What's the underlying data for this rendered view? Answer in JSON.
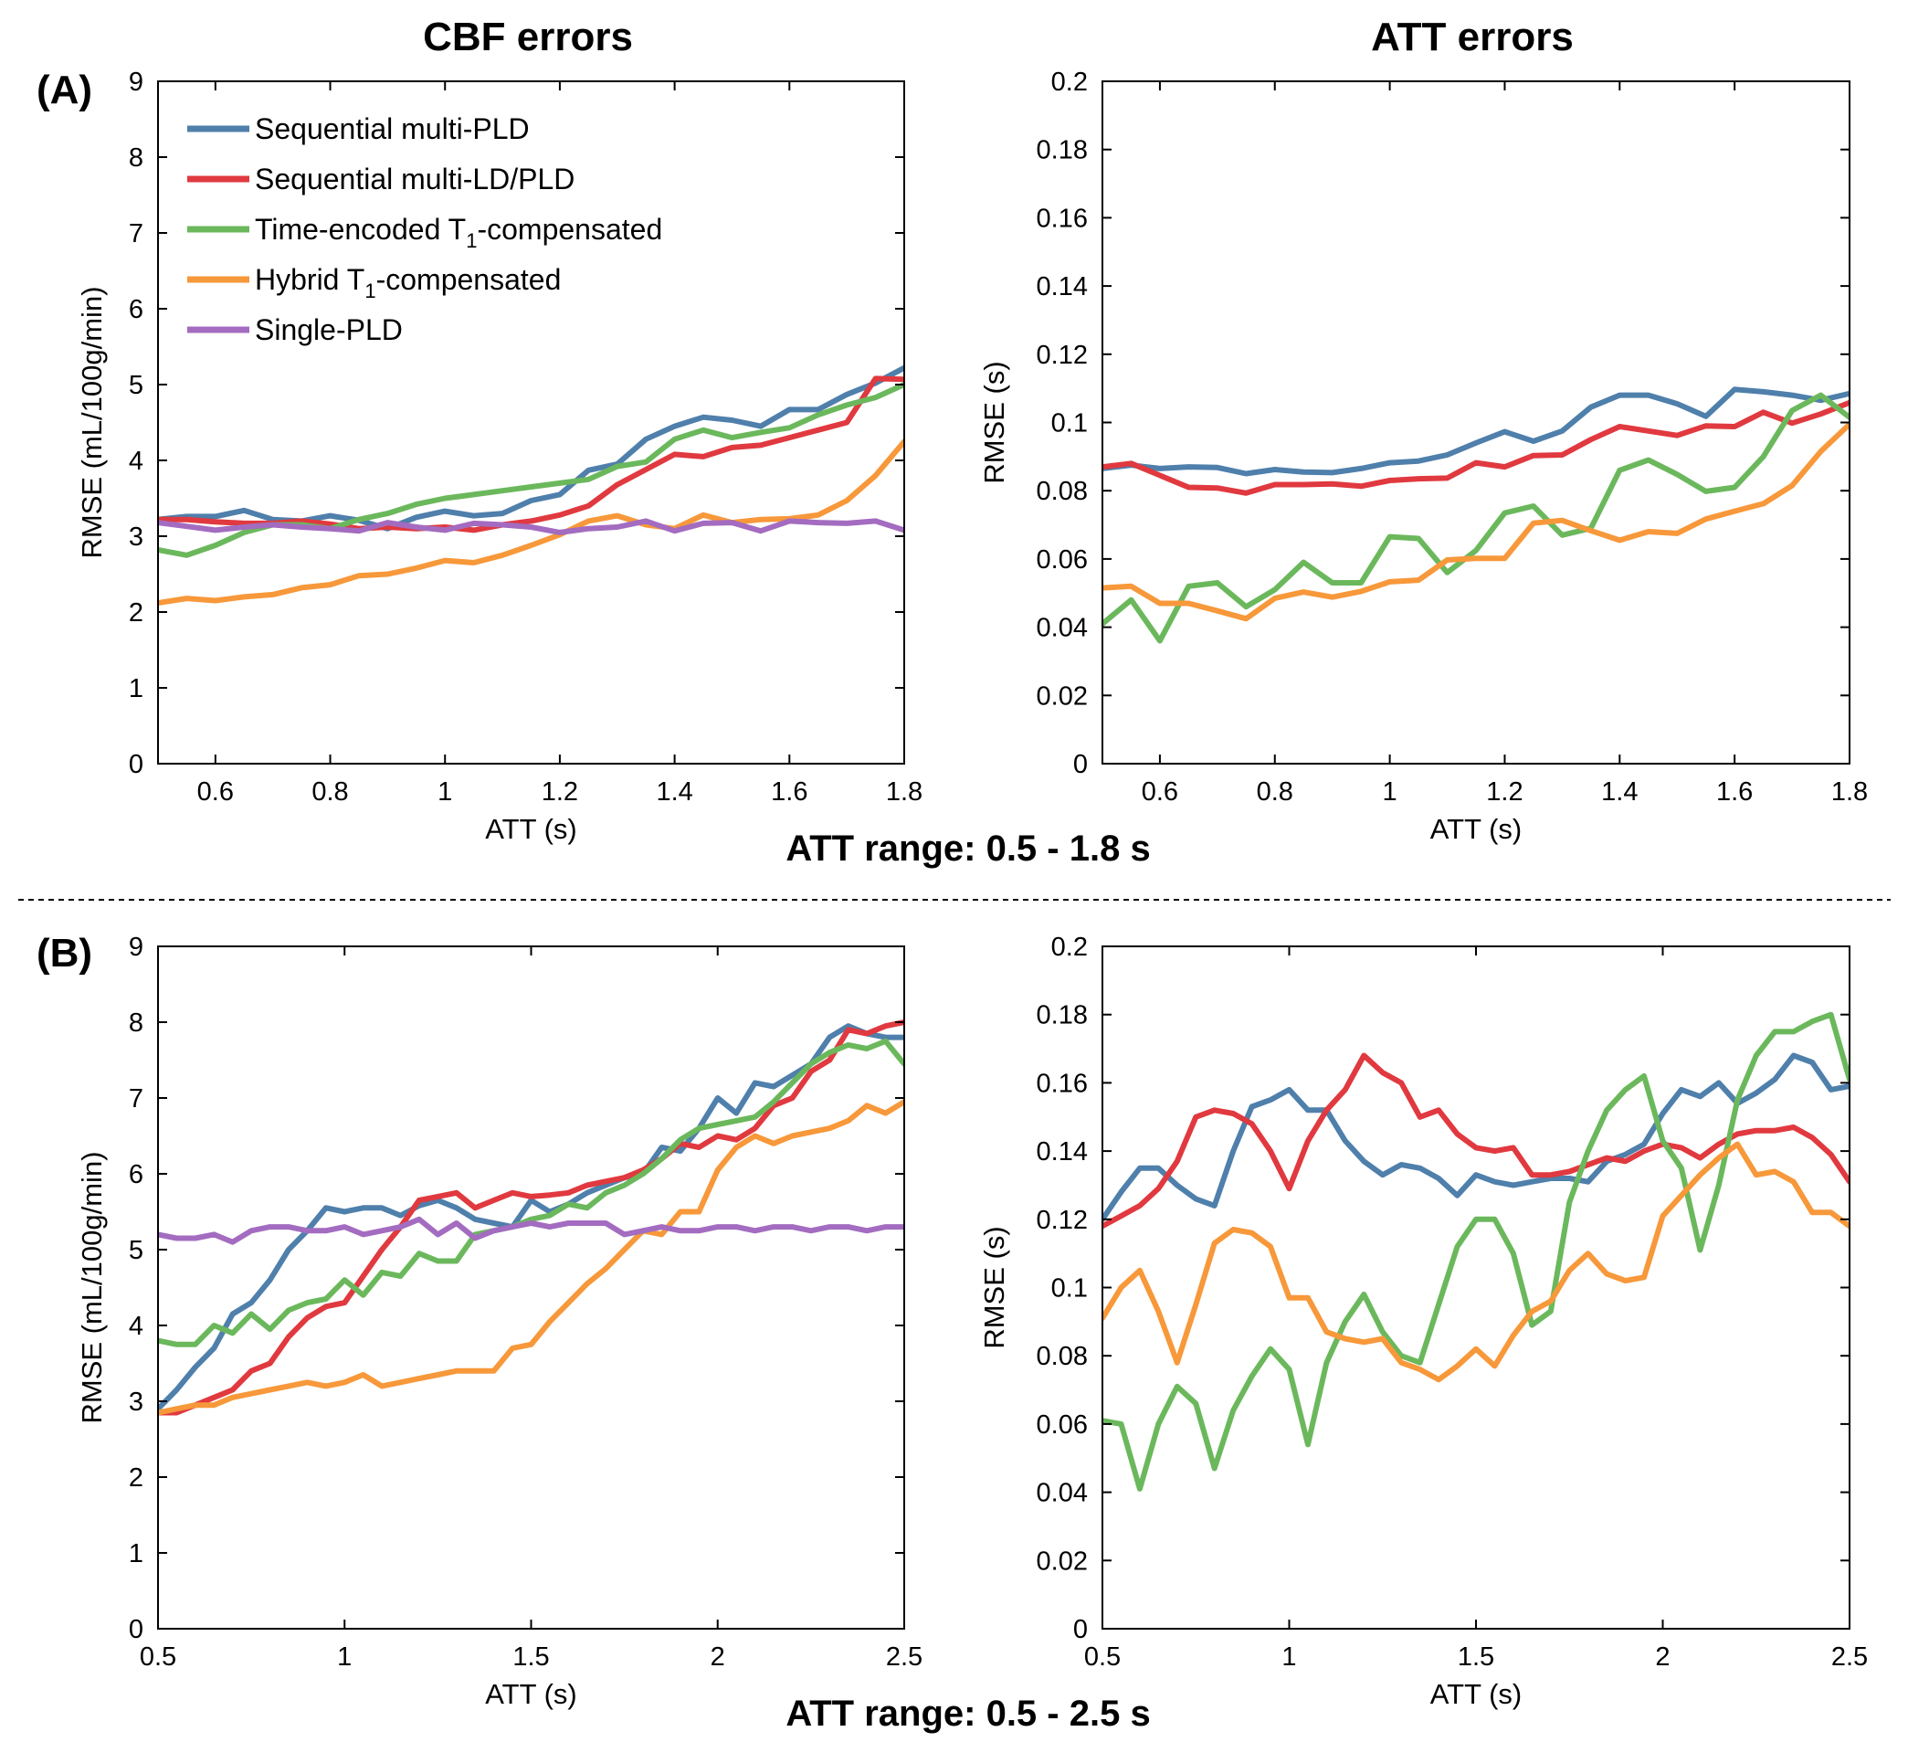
{
  "colors": {
    "blue": "#4f7fab",
    "red": "#e0393f",
    "green": "#6bb85c",
    "orange": "#f7983a",
    "purple": "#a36cc0"
  },
  "header": {
    "cbf_title": "CBF errors",
    "att_title": "ATT errors",
    "panel_a": "(A)",
    "panel_b": "(B)",
    "range_a": "ATT range: 0.5 - 1.8 s",
    "range_b": "ATT range: 0.5 - 2.5 s"
  },
  "legend": {
    "entries": [
      {
        "name": "Sequential multi-PLD",
        "color": "blue"
      },
      {
        "name": "Sequential multi-LD/PLD",
        "color": "red"
      },
      {
        "name": "Time-encoded T1-compensated",
        "color": "green",
        "pre": "Time-encoded T",
        "sub": "1",
        "post": "-compensated"
      },
      {
        "name": "Hybrid T1-compensated",
        "color": "orange",
        "pre": "Hybrid T",
        "sub": "1",
        "post": "-compensated"
      },
      {
        "name": "Single-PLD",
        "color": "purple"
      }
    ]
  },
  "chart_data": [
    {
      "id": "A-CBF",
      "type": "line",
      "title": "CBF errors",
      "xlabel": "ATT (s)",
      "ylabel": "RMSE (mL/100g/min)",
      "xlim": [
        0.5,
        1.8
      ],
      "ylim": [
        0,
        9
      ],
      "xticks": [
        0.6,
        0.8,
        1,
        1.2,
        1.4,
        1.6,
        1.8
      ],
      "yticks": [
        0,
        1,
        2,
        3,
        4,
        5,
        6,
        7,
        8,
        9
      ],
      "x": [
        0.5,
        0.55,
        0.6,
        0.65,
        0.7,
        0.75,
        0.8,
        0.85,
        0.9,
        0.95,
        1.0,
        1.05,
        1.1,
        1.15,
        1.2,
        1.25,
        1.3,
        1.35,
        1.4,
        1.45,
        1.5,
        1.55,
        1.6,
        1.65,
        1.7,
        1.75,
        1.8
      ],
      "series": [
        {
          "name": "Sequential multi-PLD",
          "color": "blue",
          "values": [
            3.22,
            3.26,
            3.26,
            3.34,
            3.22,
            3.2,
            3.27,
            3.21,
            3.1,
            3.25,
            3.33,
            3.27,
            3.3,
            3.47,
            3.55,
            3.87,
            3.95,
            4.28,
            4.45,
            4.57,
            4.53,
            4.45,
            4.67,
            4.67,
            4.87,
            5.02,
            5.22
          ]
        },
        {
          "name": "Sequential multi-LD/PLD",
          "color": "red",
          "values": [
            3.22,
            3.22,
            3.19,
            3.17,
            3.17,
            3.2,
            3.16,
            3.1,
            3.12,
            3.1,
            3.12,
            3.08,
            3.15,
            3.2,
            3.28,
            3.4,
            3.68,
            3.88,
            4.08,
            4.05,
            4.17,
            4.2,
            4.3,
            4.4,
            4.5,
            5.08,
            5.07
          ]
        },
        {
          "name": "Time-encoded T1-compensated",
          "color": "green",
          "values": [
            2.82,
            2.75,
            2.88,
            3.05,
            3.15,
            3.15,
            3.1,
            3.22,
            3.3,
            3.42,
            3.5,
            3.55,
            3.6,
            3.65,
            3.7,
            3.75,
            3.92,
            3.98,
            4.28,
            4.4,
            4.3,
            4.37,
            4.43,
            4.6,
            4.73,
            4.83,
            5.0
          ]
        },
        {
          "name": "Hybrid T1-compensated",
          "color": "orange",
          "values": [
            2.12,
            2.18,
            2.15,
            2.2,
            2.23,
            2.32,
            2.36,
            2.48,
            2.5,
            2.58,
            2.68,
            2.65,
            2.75,
            2.88,
            3.02,
            3.2,
            3.27,
            3.15,
            3.1,
            3.28,
            3.18,
            3.22,
            3.23,
            3.28,
            3.47,
            3.8,
            4.25
          ]
        },
        {
          "name": "Single-PLD",
          "color": "purple",
          "values": [
            3.18,
            3.13,
            3.08,
            3.12,
            3.15,
            3.12,
            3.1,
            3.07,
            3.18,
            3.12,
            3.08,
            3.17,
            3.15,
            3.12,
            3.05,
            3.1,
            3.12,
            3.2,
            3.07,
            3.17,
            3.18,
            3.07,
            3.2,
            3.18,
            3.17,
            3.2,
            3.08
          ]
        }
      ]
    },
    {
      "id": "A-ATT",
      "type": "line",
      "title": "ATT errors",
      "xlabel": "ATT (s)",
      "ylabel": "RMSE (s)",
      "xlim": [
        0.5,
        1.8
      ],
      "ylim": [
        0,
        0.2
      ],
      "xticks": [
        0.6,
        0.8,
        1,
        1.2,
        1.4,
        1.6,
        1.8
      ],
      "yticks": [
        0,
        0.02,
        0.04,
        0.06,
        0.08,
        0.1,
        0.12,
        0.14,
        0.16,
        0.18,
        0.2
      ],
      "x": [
        0.5,
        0.55,
        0.6,
        0.65,
        0.7,
        0.75,
        0.8,
        0.85,
        0.9,
        0.95,
        1.0,
        1.05,
        1.1,
        1.15,
        1.2,
        1.25,
        1.3,
        1.35,
        1.4,
        1.45,
        1.5,
        1.55,
        1.6,
        1.65,
        1.7,
        1.75,
        1.8
      ],
      "series": [
        {
          "name": "Sequential multi-PLD",
          "color": "blue",
          "values": [
            0.0865,
            0.0875,
            0.0865,
            0.087,
            0.0868,
            0.085,
            0.0862,
            0.0855,
            0.0853,
            0.0865,
            0.0882,
            0.0887,
            0.0905,
            0.094,
            0.0973,
            0.0945,
            0.0975,
            0.1045,
            0.108,
            0.108,
            0.1055,
            0.1018,
            0.1097,
            0.109,
            0.108,
            0.1065,
            0.1085
          ]
        },
        {
          "name": "Sequential multi-LD/PLD",
          "color": "red",
          "values": [
            0.087,
            0.088,
            0.0845,
            0.081,
            0.0808,
            0.0793,
            0.0818,
            0.0818,
            0.082,
            0.0813,
            0.083,
            0.0835,
            0.0837,
            0.0882,
            0.087,
            0.0903,
            0.0905,
            0.095,
            0.0988,
            0.0975,
            0.0962,
            0.099,
            0.0988,
            0.103,
            0.0998,
            0.1025,
            0.1058
          ]
        },
        {
          "name": "Time-encoded T1-compensated",
          "color": "green",
          "values": [
            0.041,
            0.048,
            0.036,
            0.052,
            0.053,
            0.046,
            0.051,
            0.059,
            0.053,
            0.053,
            0.0665,
            0.066,
            0.056,
            0.0625,
            0.0735,
            0.0755,
            0.067,
            0.069,
            0.086,
            0.089,
            0.0848,
            0.0798,
            0.081,
            0.09,
            0.1035,
            0.108,
            0.1015
          ]
        },
        {
          "name": "Hybrid T1-compensated",
          "color": "orange",
          "values": [
            0.0515,
            0.052,
            0.047,
            0.047,
            0.0448,
            0.0425,
            0.0485,
            0.0503,
            0.0488,
            0.0505,
            0.0533,
            0.0538,
            0.0597,
            0.0602,
            0.0602,
            0.0705,
            0.0713,
            0.0683,
            0.0655,
            0.068,
            0.0675,
            0.0717,
            0.074,
            0.0762,
            0.0815,
            0.0915,
            0.0995
          ]
        }
      ]
    },
    {
      "id": "B-CBF",
      "type": "line",
      "title": "",
      "xlabel": "ATT (s)",
      "ylabel": "RMSE (mL/100g/min)",
      "xlim": [
        0.5,
        2.5
      ],
      "ylim": [
        0,
        9
      ],
      "xticks": [
        0.5,
        1,
        1.5,
        2,
        2.5
      ],
      "yticks": [
        0,
        1,
        2,
        3,
        4,
        5,
        6,
        7,
        8,
        9
      ],
      "x": [
        0.5,
        0.55,
        0.6,
        0.65,
        0.7,
        0.75,
        0.8,
        0.85,
        0.9,
        0.95,
        1.0,
        1.05,
        1.1,
        1.15,
        1.2,
        1.25,
        1.3,
        1.35,
        1.4,
        1.45,
        1.5,
        1.55,
        1.6,
        1.65,
        1.7,
        1.75,
        1.8,
        1.85,
        1.9,
        1.95,
        2.0,
        2.05,
        2.1,
        2.15,
        2.2,
        2.25,
        2.3,
        2.35,
        2.4,
        2.45,
        2.5
      ],
      "series": [
        {
          "name": "Sequential multi-PLD",
          "color": "blue",
          "values": [
            2.9,
            3.15,
            3.45,
            3.7,
            4.15,
            4.3,
            4.6,
            5.0,
            5.25,
            5.55,
            5.5,
            5.55,
            5.55,
            5.45,
            5.58,
            5.65,
            5.55,
            5.4,
            5.35,
            5.3,
            5.65,
            5.5,
            5.6,
            5.75,
            5.85,
            5.95,
            6.0,
            6.35,
            6.3,
            6.6,
            7.0,
            6.8,
            7.2,
            7.15,
            7.3,
            7.45,
            7.8,
            7.95,
            7.85,
            7.8,
            7.8
          ]
        },
        {
          "name": "Sequential multi-LD/PLD",
          "color": "red",
          "values": [
            2.85,
            2.85,
            2.95,
            3.05,
            3.15,
            3.4,
            3.5,
            3.85,
            4.1,
            4.25,
            4.3,
            4.65,
            5.0,
            5.3,
            5.65,
            5.7,
            5.75,
            5.55,
            5.65,
            5.75,
            5.7,
            5.72,
            5.75,
            5.85,
            5.9,
            5.95,
            6.05,
            6.2,
            6.4,
            6.35,
            6.5,
            6.45,
            6.6,
            6.9,
            7.0,
            7.35,
            7.5,
            7.9,
            7.85,
            7.95,
            8.0
          ]
        },
        {
          "name": "Time-encoded T1-compensated",
          "color": "green",
          "values": [
            3.8,
            3.75,
            3.75,
            4.0,
            3.9,
            4.15,
            3.95,
            4.2,
            4.3,
            4.35,
            4.6,
            4.4,
            4.7,
            4.65,
            4.95,
            4.85,
            4.85,
            5.2,
            5.25,
            5.3,
            5.4,
            5.45,
            5.6,
            5.55,
            5.75,
            5.85,
            6.0,
            6.2,
            6.45,
            6.6,
            6.65,
            6.7,
            6.75,
            6.95,
            7.2,
            7.45,
            7.6,
            7.7,
            7.65,
            7.75,
            7.45
          ]
        },
        {
          "name": "Hybrid T1-compensated",
          "color": "orange",
          "values": [
            2.85,
            2.9,
            2.95,
            2.95,
            3.05,
            3.1,
            3.15,
            3.2,
            3.25,
            3.2,
            3.25,
            3.35,
            3.2,
            3.25,
            3.3,
            3.35,
            3.4,
            3.4,
            3.4,
            3.7,
            3.75,
            4.05,
            4.3,
            4.55,
            4.75,
            5.0,
            5.25,
            5.2,
            5.5,
            5.5,
            6.05,
            6.35,
            6.5,
            6.4,
            6.5,
            6.55,
            6.6,
            6.7,
            6.9,
            6.8,
            6.95
          ]
        },
        {
          "name": "Single-PLD",
          "color": "purple",
          "values": [
            5.2,
            5.15,
            5.15,
            5.2,
            5.1,
            5.25,
            5.3,
            5.3,
            5.25,
            5.25,
            5.3,
            5.2,
            5.25,
            5.3,
            5.4,
            5.2,
            5.35,
            5.15,
            5.25,
            5.3,
            5.35,
            5.3,
            5.35,
            5.35,
            5.35,
            5.2,
            5.25,
            5.3,
            5.25,
            5.25,
            5.3,
            5.3,
            5.25,
            5.3,
            5.3,
            5.25,
            5.3,
            5.3,
            5.25,
            5.3,
            5.3
          ]
        }
      ]
    },
    {
      "id": "B-ATT",
      "type": "line",
      "title": "",
      "xlabel": "ATT (s)",
      "ylabel": "RMSE (s)",
      "xlim": [
        0.5,
        2.5
      ],
      "ylim": [
        0,
        0.2
      ],
      "xticks": [
        0.5,
        1,
        1.5,
        2,
        2.5
      ],
      "yticks": [
        0,
        0.02,
        0.04,
        0.06,
        0.08,
        0.1,
        0.12,
        0.14,
        0.16,
        0.18,
        0.2
      ],
      "x": [
        0.5,
        0.55,
        0.6,
        0.65,
        0.7,
        0.75,
        0.8,
        0.85,
        0.9,
        0.95,
        1.0,
        1.05,
        1.1,
        1.15,
        1.2,
        1.25,
        1.3,
        1.35,
        1.4,
        1.45,
        1.5,
        1.55,
        1.6,
        1.65,
        1.7,
        1.75,
        1.8,
        1.85,
        1.9,
        1.95,
        2.0,
        2.05,
        2.1,
        2.15,
        2.2,
        2.25,
        2.3,
        2.35,
        2.4,
        2.45,
        2.5
      ],
      "series": [
        {
          "name": "Sequential multi-PLD",
          "color": "blue",
          "values": [
            0.12,
            0.128,
            0.135,
            0.135,
            0.13,
            0.126,
            0.124,
            0.14,
            0.153,
            0.155,
            0.158,
            0.152,
            0.152,
            0.143,
            0.137,
            0.133,
            0.136,
            0.135,
            0.132,
            0.127,
            0.133,
            0.131,
            0.13,
            0.131,
            0.132,
            0.132,
            0.131,
            0.137,
            0.139,
            0.142,
            0.151,
            0.158,
            0.156,
            0.16,
            0.154,
            0.157,
            0.161,
            0.168,
            0.166,
            0.158,
            0.159
          ]
        },
        {
          "name": "Sequential multi-LD/PLD",
          "color": "red",
          "values": [
            0.118,
            0.121,
            0.124,
            0.129,
            0.137,
            0.15,
            0.152,
            0.151,
            0.148,
            0.14,
            0.129,
            0.143,
            0.152,
            0.158,
            0.168,
            0.163,
            0.16,
            0.15,
            0.152,
            0.145,
            0.141,
            0.14,
            0.141,
            0.133,
            0.133,
            0.134,
            0.136,
            0.138,
            0.137,
            0.14,
            0.142,
            0.141,
            0.138,
            0.142,
            0.145,
            0.146,
            0.146,
            0.147,
            0.144,
            0.139,
            0.131
          ]
        },
        {
          "name": "Time-encoded T1-compensated",
          "color": "green",
          "values": [
            0.061,
            0.06,
            0.041,
            0.06,
            0.071,
            0.066,
            0.047,
            0.064,
            0.074,
            0.082,
            0.076,
            0.054,
            0.078,
            0.09,
            0.098,
            0.087,
            0.08,
            0.078,
            0.095,
            0.112,
            0.12,
            0.12,
            0.11,
            0.089,
            0.093,
            0.125,
            0.14,
            0.152,
            0.158,
            0.162,
            0.143,
            0.135,
            0.111,
            0.13,
            0.155,
            0.168,
            0.175,
            0.175,
            0.178,
            0.18,
            0.161
          ]
        },
        {
          "name": "Hybrid T1-compensated",
          "color": "orange",
          "values": [
            0.091,
            0.1,
            0.105,
            0.093,
            0.078,
            0.095,
            0.113,
            0.117,
            0.116,
            0.112,
            0.097,
            0.097,
            0.087,
            0.085,
            0.084,
            0.085,
            0.078,
            0.076,
            0.073,
            0.077,
            0.082,
            0.077,
            0.086,
            0.093,
            0.096,
            0.105,
            0.11,
            0.104,
            0.102,
            0.103,
            0.121,
            0.127,
            0.133,
            0.138,
            0.142,
            0.133,
            0.134,
            0.131,
            0.122,
            0.122,
            0.118
          ]
        }
      ]
    }
  ]
}
